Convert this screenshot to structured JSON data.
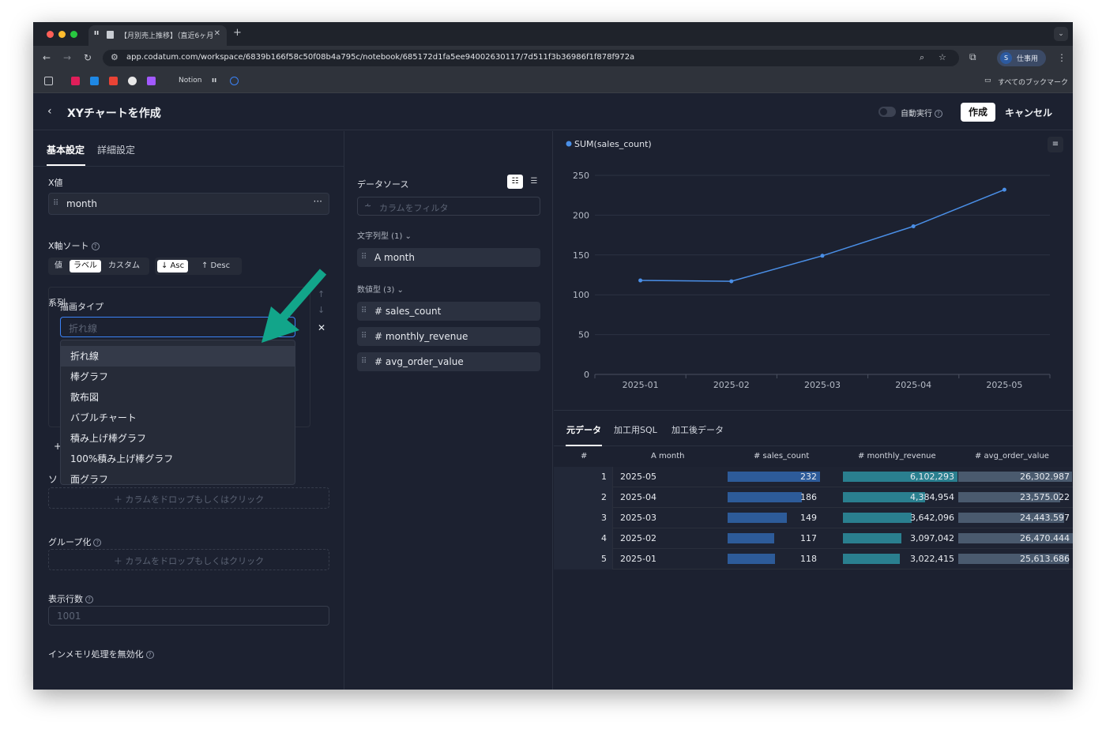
{
  "browser": {
    "tab_title": "【月別売上推移】（直近6ヶ月",
    "url": "app.codatum.com/workspace/6839b166f58c50f08b4a795c/notebook/685172d1fa5ee94002630117/7d511f3b36986f1f878f972a",
    "profile_initial": "S",
    "profile_label": "仕事用",
    "bookmark_notion": "Notion",
    "bookmark_all": "すべてのブックマーク"
  },
  "header": {
    "title": "XYチャートを作成",
    "autorun_label": "自動実行",
    "create_label": "作成",
    "cancel_label": "キャンセル"
  },
  "left": {
    "tabs": [
      "基本設定",
      "詳細設定"
    ],
    "x_label": "X値",
    "x_value": "month",
    "xsort_label": "X軸ソート",
    "sort_options": [
      "値",
      "ラベル",
      "カスタム"
    ],
    "sort_dir": [
      "↓ Asc",
      "↑ Desc"
    ],
    "series_label": "系列",
    "draw_type_label": "描画タイプ",
    "draw_type_placeholder": "折れ線",
    "draw_type_options": [
      "折れ線",
      "棒グラフ",
      "散布図",
      "バブルチャート",
      "積み上げ棒グラフ",
      "100%積み上げ棒グラフ",
      "面グラフ"
    ],
    "drop_hint": "＋ カラムをドロップもしくはクリック",
    "group_label": "グループ化",
    "rows_label": "表示行数",
    "rows_placeholder": "1001",
    "inmem_label": "インメモリ処理を無効化"
  },
  "middle": {
    "datasource_label": "データソース",
    "filter_placeholder": "カラムをフィルタ",
    "string_section": "文字列型 (1)",
    "string_cols": [
      "month"
    ],
    "numeric_section": "数値型 (3)",
    "numeric_cols": [
      "sales_count",
      "monthly_revenue",
      "avg_order_value"
    ]
  },
  "chart_data": {
    "type": "line",
    "series": [
      {
        "name": "SUM(sales_count)",
        "values": [
          118,
          117,
          149,
          186,
          232
        ]
      }
    ],
    "categories": [
      "2025-01",
      "2025-02",
      "2025-03",
      "2025-04",
      "2025-05"
    ],
    "ylim": [
      0,
      250
    ],
    "yticks": [
      0,
      50,
      100,
      150,
      200,
      250
    ],
    "grid": true,
    "legend": "top-left",
    "color": "#4a8fe7"
  },
  "data_tabs": [
    "元データ",
    "加工用SQL",
    "加工後データ"
  ],
  "table": {
    "headers": [
      "#",
      "A month",
      "# sales_count",
      "# monthly_revenue",
      "# avg_order_value"
    ],
    "rows": [
      {
        "n": "1",
        "month": "2025-05",
        "sales_count": "232",
        "sales_frac": 1.0,
        "revenue": "6,102,293",
        "revenue_frac": 1.0,
        "aov": "26,302.987",
        "aov_frac": 0.994
      },
      {
        "n": "2",
        "month": "2025-04",
        "sales_count": "186",
        "sales_frac": 0.802,
        "revenue": "4,384,954",
        "revenue_frac": 0.719,
        "aov": "23,575.022",
        "aov_frac": 0.891
      },
      {
        "n": "3",
        "month": "2025-03",
        "sales_count": "149",
        "sales_frac": 0.642,
        "revenue": "3,642,096",
        "revenue_frac": 0.597,
        "aov": "24,443.597",
        "aov_frac": 0.924
      },
      {
        "n": "4",
        "month": "2025-02",
        "sales_count": "117",
        "sales_frac": 0.504,
        "revenue": "3,097,042",
        "revenue_frac": 0.508,
        "aov": "26,470.444",
        "aov_frac": 1.0
      },
      {
        "n": "5",
        "month": "2025-01",
        "sales_count": "118",
        "sales_frac": 0.509,
        "revenue": "3,022,415",
        "revenue_frac": 0.495,
        "aov": "25,613.686",
        "aov_frac": 0.968
      }
    ]
  },
  "colors": {
    "accent": "#3b82f6",
    "bar_sales": "#2d5b99",
    "bar_revenue": "#2a7f8f",
    "bar_aov": "#4a5a6e",
    "annotation_arrow": "#12a58a"
  }
}
